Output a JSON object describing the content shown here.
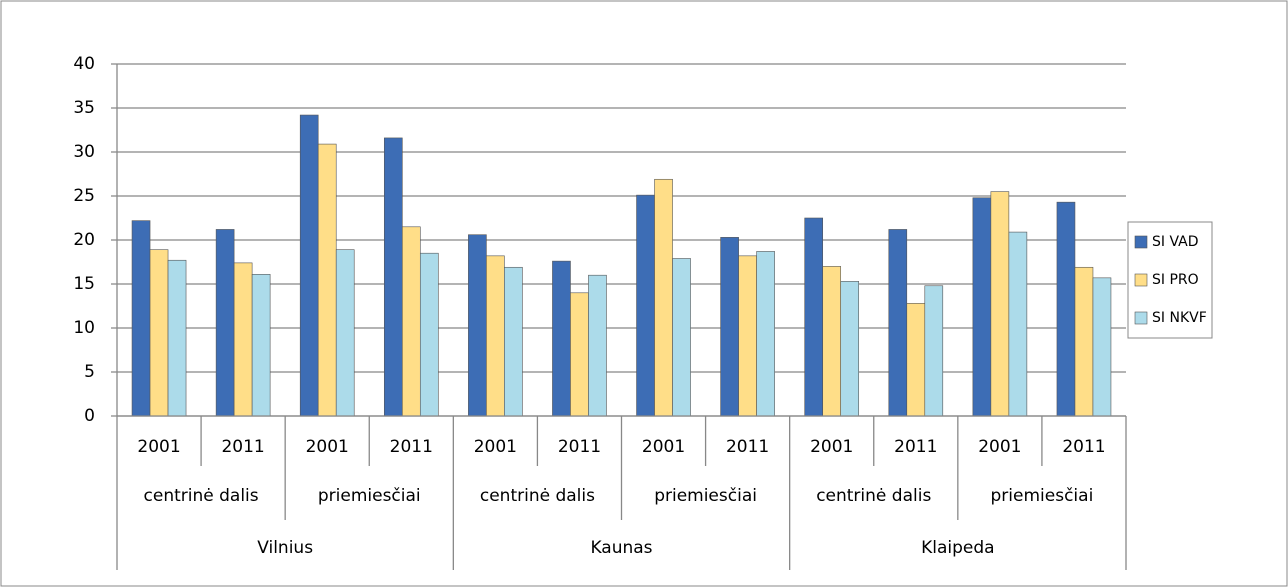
{
  "chart_data": {
    "type": "bar",
    "categories": [
      "2001",
      "2011",
      "2001",
      "2011",
      "2001",
      "2011",
      "2001",
      "2011",
      "2001",
      "2011",
      "2001",
      "2011"
    ],
    "category_levels": [
      {
        "labels": [
          "centrinė dalis",
          "priemiesčiai",
          "centrinė dalis",
          "priemiesčiai",
          "centrinė dalis",
          "priemiesčiai"
        ]
      },
      {
        "labels": [
          "Vilnius",
          "Kaunas",
          "Klaipeda"
        ]
      }
    ],
    "series": [
      {
        "name": "SI VAD",
        "color": "#3d6db5",
        "values": [
          22.2,
          21.2,
          34.2,
          31.6,
          20.6,
          17.6,
          25.1,
          20.3,
          22.5,
          21.2,
          24.8,
          24.3
        ]
      },
      {
        "name": "SI PRO",
        "color": "#ffde88",
        "values": [
          18.9,
          17.4,
          30.9,
          21.5,
          18.2,
          14.0,
          26.9,
          18.2,
          17.0,
          12.8,
          25.5,
          16.9
        ]
      },
      {
        "name": "SI NKVF",
        "color": "#acdbea",
        "values": [
          17.7,
          16.1,
          18.9,
          18.5,
          16.9,
          16.0,
          17.9,
          18.7,
          15.3,
          14.8,
          20.9,
          15.7
        ]
      }
    ],
    "ylim": [
      0,
      40
    ],
    "yticks": [
      0,
      5,
      10,
      15,
      20,
      25,
      30,
      35,
      40
    ],
    "grid": true,
    "legend": "right"
  }
}
